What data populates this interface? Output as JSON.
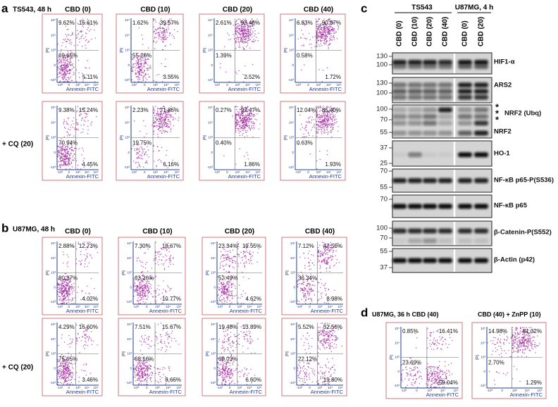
{
  "axes": {
    "y_label": "PI",
    "x_label": "Annexin-FITC",
    "y_ticks": [
      "10⁵",
      "10⁴",
      "10³",
      "0",
      "-10³"
    ],
    "x_ticks": [
      "-10³",
      "0",
      "10³",
      "10⁴",
      "10⁵"
    ]
  },
  "panel_a": {
    "letter": "a",
    "title": "TS543, 48 h",
    "columns": [
      "CBD (0)",
      "CBD (10)",
      "CBD (20)",
      "CBD (40)"
    ],
    "row_label": "+ CQ (20)",
    "rows": [
      [
        [
          "9.62%",
          "15.61%",
          "69.65%",
          "5.11%"
        ],
        [
          "1.62%",
          "39.57%",
          "55.26%",
          "3.55%"
        ],
        [
          "2.61%",
          "93.48%",
          "1.39%",
          "2.52%"
        ],
        [
          "6.83%",
          "90.87%",
          "0.58%",
          "1.72%"
        ]
      ],
      [
        [
          "9.38%",
          "15.24%",
          "70.94%",
          "4.45%"
        ],
        [
          "2.23%",
          "71.86%",
          "19.75%",
          "6.16%"
        ],
        [
          "0.27%",
          "97.47%",
          "0.40%",
          "1.86%"
        ],
        [
          "12.04%",
          "85.40%",
          "0.63%",
          "1.93%"
        ]
      ]
    ]
  },
  "panel_b": {
    "letter": "b",
    "title": "U87MG, 48 h",
    "columns": [
      "CBD (0)",
      "CBD (10)",
      "CBD (20)",
      "CBD (40)"
    ],
    "row_label": "+ CQ (20)",
    "rows": [
      [
        [
          "2.88%",
          "12.73%",
          "80.37%",
          "4.02%"
        ],
        [
          "7.30%",
          "18.67%",
          "63.26%",
          "10.77%"
        ],
        [
          "23.34%",
          "19.55%",
          "52.49%",
          "4.62%"
        ],
        [
          "7.12%",
          "47.56%",
          "36.34%",
          "8.98%"
        ]
      ],
      [
        [
          "4.29%",
          "16.60%",
          "75.65%",
          "3.46%"
        ],
        [
          "7.51%",
          "15.67%",
          "68.16%",
          "8.66%"
        ],
        [
          "19.48%",
          "13.89%",
          "60.03%",
          "6.60%"
        ],
        [
          "5.52%",
          "52.56%",
          "22.12%",
          "19.80%"
        ]
      ]
    ]
  },
  "panel_c": {
    "letter": "c",
    "groups": [
      "TS543",
      "U87MG, 4 h"
    ],
    "lanes": [
      "CBD (0)",
      "CBD (10)",
      "CBD (20)",
      "CBD (40)",
      "CBD (0)",
      "CBD (20)"
    ],
    "blots": [
      {
        "labels": [
          "HIF1-α"
        ],
        "markers": [
          "130",
          "100"
        ]
      },
      {
        "labels": [
          "ARS2"
        ],
        "markers": [
          "130",
          "100"
        ]
      },
      {
        "labels": [
          "NRF2 (Ubq)",
          "NRF2"
        ],
        "markers": [
          "100",
          "70",
          "55"
        ],
        "asterisks": [
          "*",
          "*",
          "*"
        ]
      },
      {
        "labels": [
          "HO-1"
        ],
        "markers": [
          "37",
          "25"
        ]
      },
      {
        "labels": [
          "NF-κB p65-P(S536)"
        ],
        "markers": [
          "70",
          "55"
        ]
      },
      {
        "labels": [
          "NF-κB p65"
        ],
        "markers": [
          "70"
        ]
      },
      {
        "labels": [
          "β-Catenin-P(S552)"
        ],
        "markers": [
          "100",
          "70"
        ]
      },
      {
        "labels": [
          "β-Actin (p42)"
        ],
        "markers": [
          "55",
          "37"
        ]
      }
    ]
  },
  "panel_d": {
    "letter": "d",
    "plots": [
      {
        "title": "U87MG, 36 h CBD (40)",
        "quadrants": [
          "0.85%",
          "16.41%",
          "23.69%",
          "59.04%"
        ]
      },
      {
        "title": "CBD (40) + ZnPP (10)",
        "quadrants": [
          "14.98%",
          "81.02%",
          "2.70%",
          "1.29%"
        ]
      }
    ]
  }
}
